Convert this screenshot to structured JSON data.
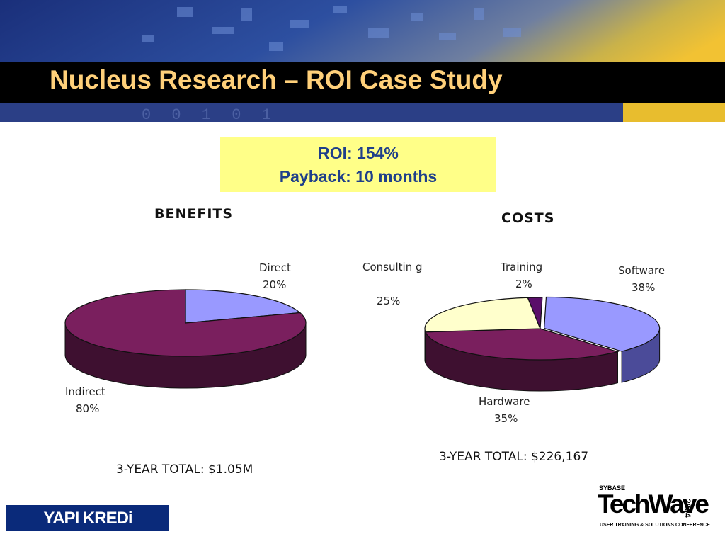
{
  "slide": {
    "title": "Nucleus Research – ROI Case Study",
    "roi": "ROI: 154%",
    "payback": "Payback: 10 months",
    "roi_box_color": "#ffff88",
    "title_color": "#ffd07a"
  },
  "chart_data": [
    {
      "type": "pie",
      "title": "BENEFITS",
      "slices": [
        {
          "label": "Direct",
          "value": 20,
          "pct_text": "20%",
          "color": "#9999ff",
          "side_color": "#4b4b99"
        },
        {
          "label": "Indirect",
          "value": 80,
          "pct_text": "80%",
          "color": "#7a1f5e",
          "side_color": "#3e1030"
        }
      ],
      "total": "3-YEAR TOTAL: $1.05M"
    },
    {
      "type": "pie",
      "title": "COSTS",
      "slices": [
        {
          "label": "Software",
          "value": 38,
          "pct_text": "38%",
          "color": "#9999ff",
          "side_color": "#4b4b99"
        },
        {
          "label": "Hardware",
          "value": 35,
          "pct_text": "35%",
          "color": "#7a1f5e",
          "side_color": "#3e1030"
        },
        {
          "label": "Consultin g",
          "value": 25,
          "pct_text": "25%",
          "color": "#ffffcc",
          "side_color": "#9a9a70"
        },
        {
          "label": "Training",
          "value": 2,
          "pct_text": "2%",
          "color": "#5a0f6a",
          "side_color": "#2d0835"
        }
      ],
      "total": "3-YEAR TOTAL: $226,167"
    }
  ],
  "logos": {
    "yapi": "YAPI KREDi",
    "techwave_top": "SYBASE",
    "techwave_main": "TechWave",
    "techwave_year": "2004",
    "techwave_sub": "USER TRAINING & SOLUTIONS CONFERENCE"
  }
}
